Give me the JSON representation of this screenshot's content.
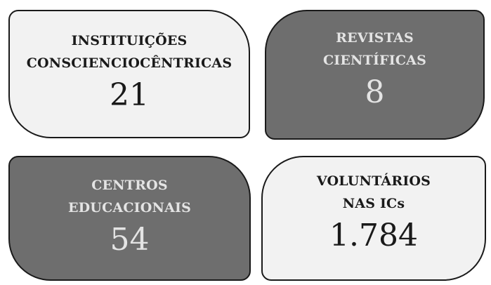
{
  "cards": [
    {
      "label": [
        "INSTITUIÇÕES",
        "CONSCIENCIOCÊNTRICAS"
      ],
      "value": "21"
    },
    {
      "label": [
        "REVISTAS",
        "CIENTÍFICAS"
      ],
      "value": "8"
    },
    {
      "label": [
        "CENTROS",
        "EDUCACIONAIS"
      ],
      "value": "54"
    },
    {
      "label": [
        "VOLUNTÁRIOS",
        "NAS ICs"
      ],
      "value": "1.784"
    }
  ]
}
